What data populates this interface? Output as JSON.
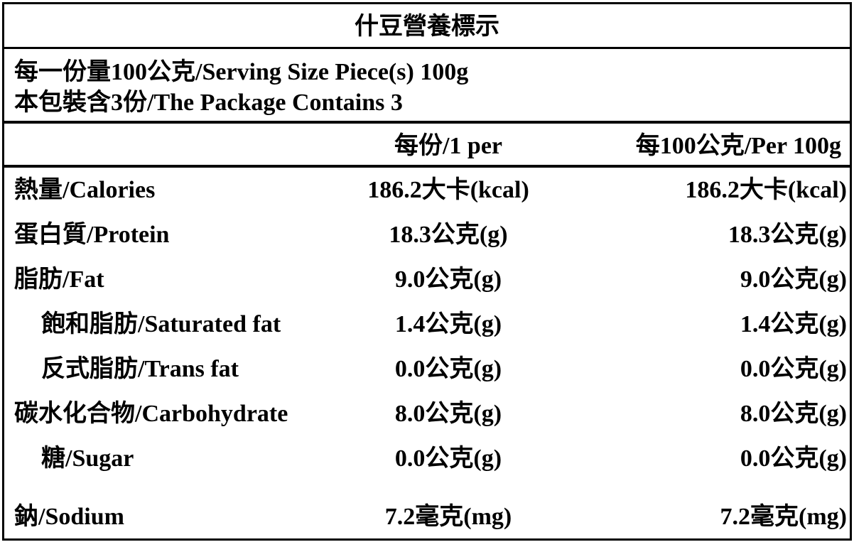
{
  "title": "什豆營養標示",
  "serving": [
    "每一份量100公克/Serving Size Piece(s) 100g",
    "本包裝含3份/The Package Contains 3"
  ],
  "header": [
    "每份/1 per",
    "每100公克/Per 100g"
  ],
  "rows": [
    [
      "熱量/Calories",
      "186.2大卡(kcal)",
      "186.2大卡(kcal)"
    ],
    [
      "蛋白質/Protein",
      "18.3公克(g)",
      "18.3公克(g)"
    ],
    [
      "脂肪/Fat",
      "9.0公克(g)",
      "9.0公克(g)"
    ],
    [
      "飽和脂肪/Saturated fat",
      "1.4公克(g)",
      "1.4公克(g)"
    ],
    [
      "反式脂肪/Trans fat",
      "0.0公克(g)",
      "0.0公克(g)"
    ],
    [
      "碳水化合物/Carbohydrate",
      "8.0公克(g)",
      "8.0公克(g)"
    ],
    [
      "糖/Sugar",
      "0.0公克(g)",
      "0.0公克(g)"
    ],
    [
      "鈉/Sodium",
      "7.2毫克(mg)",
      "7.2毫克(mg)"
    ]
  ]
}
